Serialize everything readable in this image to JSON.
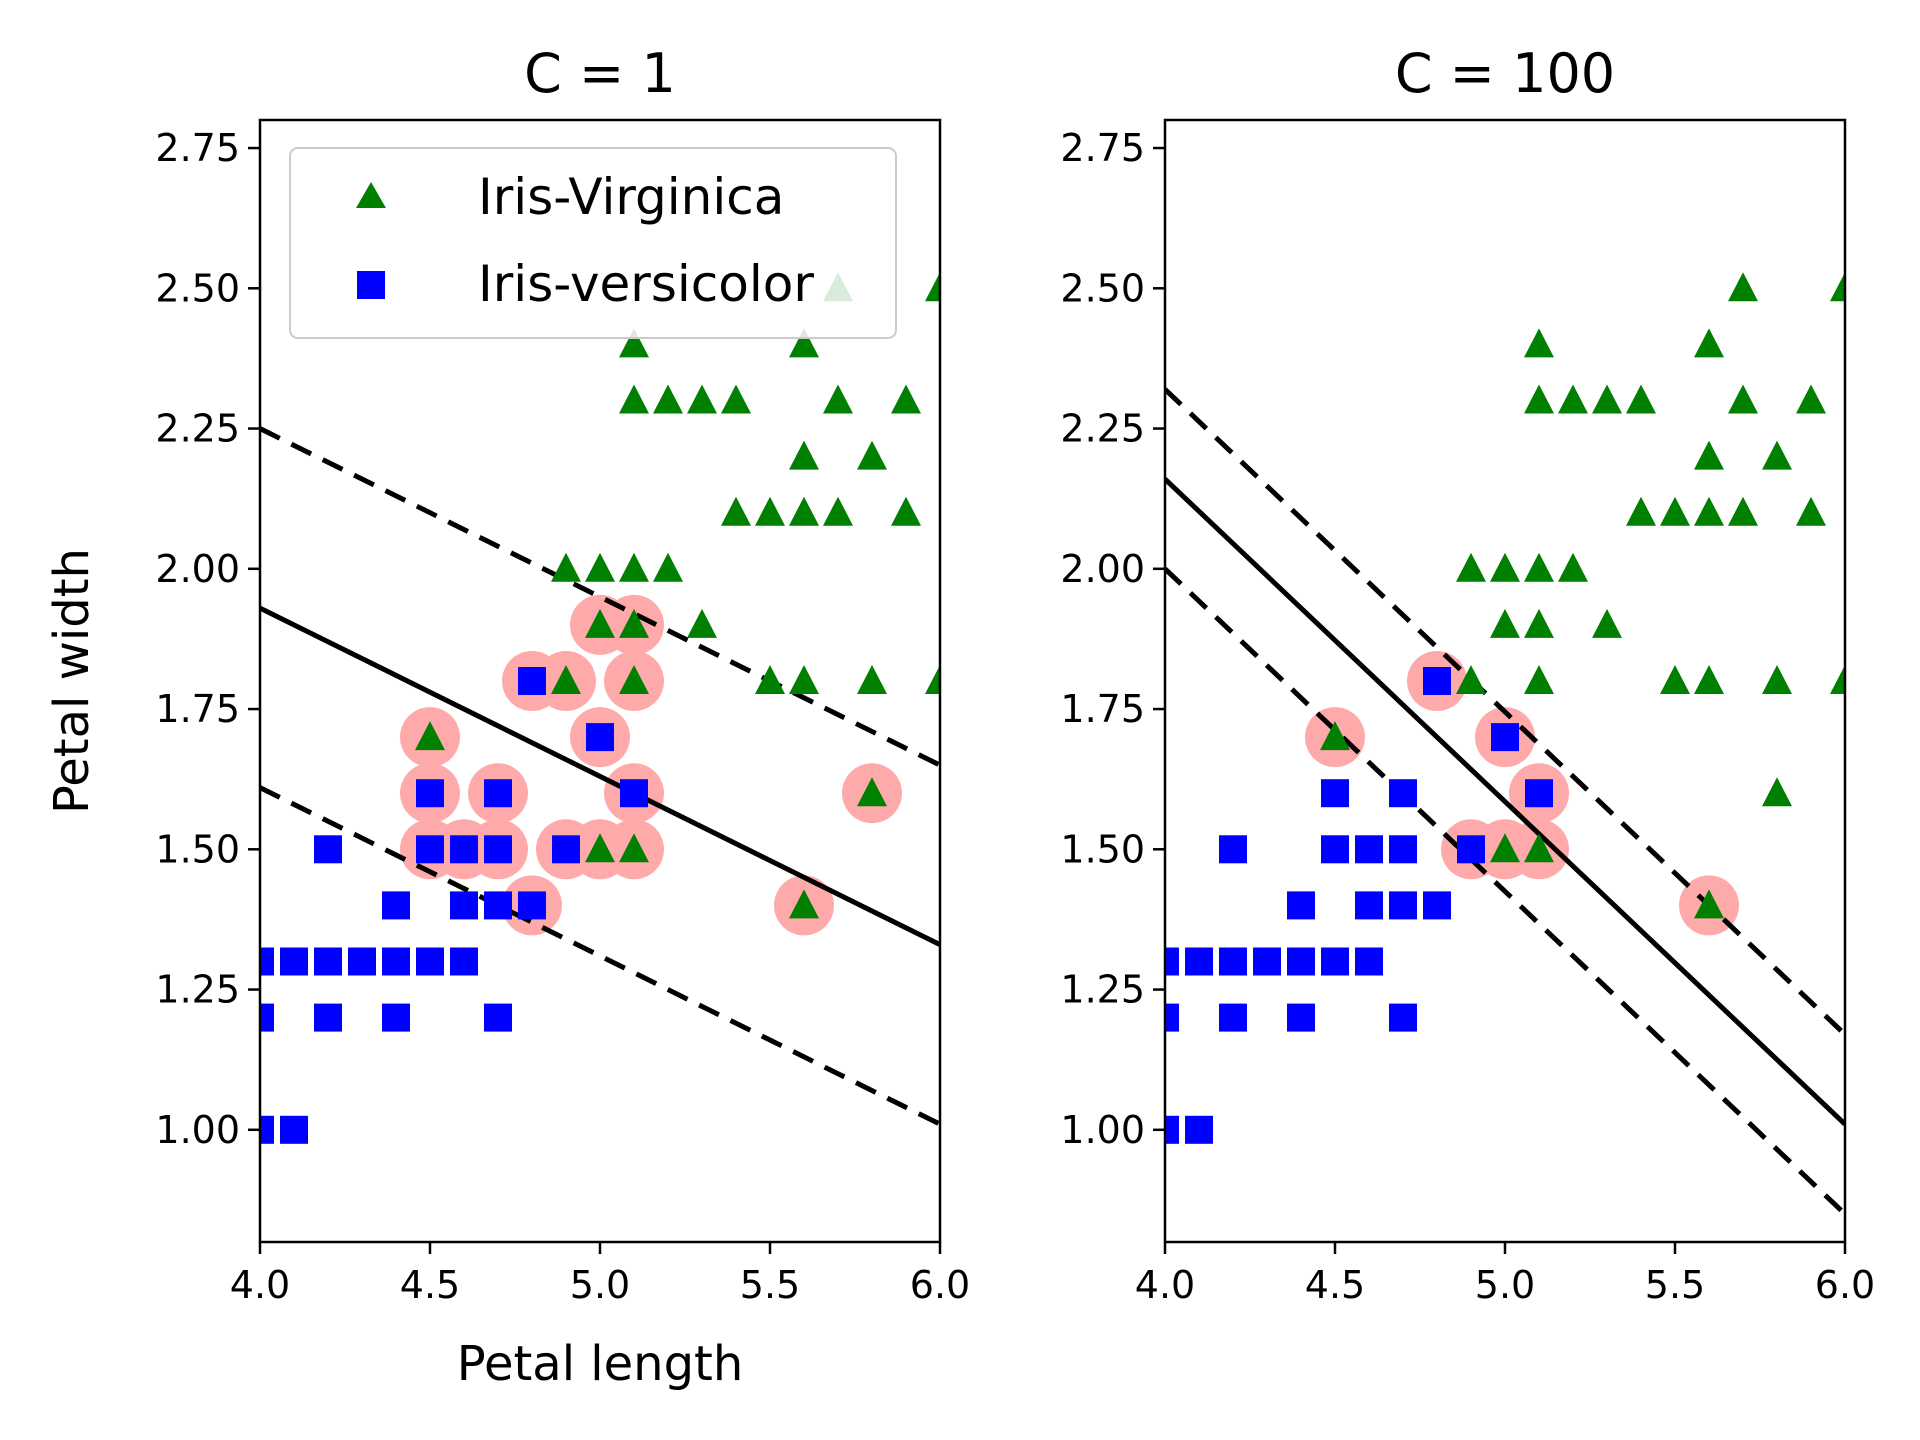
{
  "chart_data": [
    {
      "type": "scatter",
      "title": "C = 1",
      "xlabel": "Petal length",
      "ylabel": "Petal width",
      "xlim": [
        4.0,
        6.0
      ],
      "ylim": [
        0.8,
        2.8
      ],
      "xticks": [
        "4.0",
        "4.5",
        "5.0",
        "5.5",
        "6.0"
      ],
      "yticks": [
        "1.00",
        "1.25",
        "1.50",
        "1.75",
        "2.00",
        "2.25",
        "2.50",
        "2.75"
      ],
      "legend": {
        "position": "top-left",
        "entries": [
          {
            "label": "Iris-Virginica",
            "marker": "triangle",
            "color": "#008000"
          },
          {
            "label": "Iris-versicolor",
            "marker": "square",
            "color": "#0000ff"
          }
        ]
      },
      "series": [
        {
          "name": "Iris-Virginica",
          "marker": "triangle",
          "color": "#008000",
          "points": [
            [
              5.6,
              2.4
            ],
            [
              5.1,
              2.4
            ],
            [
              5.1,
              2.3
            ],
            [
              5.2,
              2.3
            ],
            [
              5.3,
              2.3
            ],
            [
              5.4,
              2.3
            ],
            [
              5.7,
              2.3
            ],
            [
              5.9,
              2.3
            ],
            [
              5.7,
              2.5
            ],
            [
              6.0,
              2.5
            ],
            [
              5.6,
              2.2
            ],
            [
              5.8,
              2.2
            ],
            [
              5.4,
              2.1
            ],
            [
              5.5,
              2.1
            ],
            [
              5.6,
              2.1
            ],
            [
              5.7,
              2.1
            ],
            [
              5.9,
              2.1
            ],
            [
              4.9,
              2.0
            ],
            [
              5.0,
              2.0
            ],
            [
              5.1,
              2.0
            ],
            [
              5.2,
              2.0
            ],
            [
              5.0,
              1.9
            ],
            [
              5.1,
              1.9
            ],
            [
              5.3,
              1.9
            ],
            [
              4.9,
              1.8
            ],
            [
              5.1,
              1.8
            ],
            [
              5.5,
              1.8
            ],
            [
              5.6,
              1.8
            ],
            [
              5.8,
              1.8
            ],
            [
              6.0,
              1.8
            ],
            [
              4.5,
              1.7
            ],
            [
              5.8,
              1.6
            ],
            [
              5.0,
              1.5
            ],
            [
              5.1,
              1.5
            ],
            [
              5.6,
              1.4
            ]
          ]
        },
        {
          "name": "Iris-versicolor",
          "marker": "square",
          "color": "#0000ff",
          "points": [
            [
              4.8,
              1.8
            ],
            [
              5.0,
              1.7
            ],
            [
              4.5,
              1.6
            ],
            [
              4.7,
              1.6
            ],
            [
              5.1,
              1.6
            ],
            [
              4.2,
              1.5
            ],
            [
              4.5,
              1.5
            ],
            [
              4.6,
              1.5
            ],
            [
              4.7,
              1.5
            ],
            [
              4.9,
              1.5
            ],
            [
              4.4,
              1.4
            ],
            [
              4.6,
              1.4
            ],
            [
              4.7,
              1.4
            ],
            [
              4.8,
              1.4
            ],
            [
              4.0,
              1.3
            ],
            [
              4.1,
              1.3
            ],
            [
              4.2,
              1.3
            ],
            [
              4.3,
              1.3
            ],
            [
              4.4,
              1.3
            ],
            [
              4.5,
              1.3
            ],
            [
              4.6,
              1.3
            ],
            [
              4.0,
              1.2
            ],
            [
              4.2,
              1.2
            ],
            [
              4.4,
              1.2
            ],
            [
              4.7,
              1.2
            ],
            [
              4.0,
              1.0
            ],
            [
              4.1,
              1.0
            ]
          ]
        }
      ],
      "support_vectors": [
        [
          4.5,
          1.7
        ],
        [
          4.5,
          1.6
        ],
        [
          4.5,
          1.5
        ],
        [
          4.6,
          1.5
        ],
        [
          4.7,
          1.6
        ],
        [
          4.7,
          1.5
        ],
        [
          4.8,
          1.4
        ],
        [
          4.8,
          1.8
        ],
        [
          4.9,
          1.8
        ],
        [
          4.9,
          1.5
        ],
        [
          5.0,
          1.9
        ],
        [
          5.0,
          1.7
        ],
        [
          5.0,
          1.5
        ],
        [
          5.1,
          1.9
        ],
        [
          5.1,
          1.8
        ],
        [
          5.1,
          1.6
        ],
        [
          5.1,
          1.5
        ],
        [
          5.6,
          1.4
        ],
        [
          5.8,
          1.6
        ]
      ],
      "support_vector_color": "#ffaaaa",
      "lines": [
        {
          "style": "solid",
          "points": [
            [
              4.0,
              1.93
            ],
            [
              6.0,
              1.33
            ]
          ]
        },
        {
          "style": "dashed",
          "points": [
            [
              4.0,
              2.25
            ],
            [
              6.0,
              1.65
            ]
          ]
        },
        {
          "style": "dashed",
          "points": [
            [
              4.0,
              1.61
            ],
            [
              6.0,
              1.01
            ]
          ]
        }
      ]
    },
    {
      "type": "scatter",
      "title": "C = 100",
      "xlabel": "",
      "ylabel": "",
      "xlim": [
        4.0,
        6.0
      ],
      "ylim": [
        0.8,
        2.8
      ],
      "xticks": [
        "4.0",
        "4.5",
        "5.0",
        "5.5",
        "6.0"
      ],
      "yticks": [
        "1.00",
        "1.25",
        "1.50",
        "1.75",
        "2.00",
        "2.25",
        "2.50",
        "2.75"
      ],
      "series": [
        {
          "name": "Iris-Virginica",
          "marker": "triangle",
          "color": "#008000",
          "points": [
            [
              5.6,
              2.4
            ],
            [
              5.1,
              2.4
            ],
            [
              5.1,
              2.3
            ],
            [
              5.2,
              2.3
            ],
            [
              5.3,
              2.3
            ],
            [
              5.4,
              2.3
            ],
            [
              5.7,
              2.3
            ],
            [
              5.9,
              2.3
            ],
            [
              5.7,
              2.5
            ],
            [
              6.0,
              2.5
            ],
            [
              5.6,
              2.2
            ],
            [
              5.8,
              2.2
            ],
            [
              5.4,
              2.1
            ],
            [
              5.5,
              2.1
            ],
            [
              5.6,
              2.1
            ],
            [
              5.7,
              2.1
            ],
            [
              5.9,
              2.1
            ],
            [
              4.9,
              2.0
            ],
            [
              5.0,
              2.0
            ],
            [
              5.1,
              2.0
            ],
            [
              5.2,
              2.0
            ],
            [
              5.0,
              1.9
            ],
            [
              5.1,
              1.9
            ],
            [
              5.3,
              1.9
            ],
            [
              4.9,
              1.8
            ],
            [
              5.1,
              1.8
            ],
            [
              5.5,
              1.8
            ],
            [
              5.6,
              1.8
            ],
            [
              5.8,
              1.8
            ],
            [
              6.0,
              1.8
            ],
            [
              4.5,
              1.7
            ],
            [
              5.8,
              1.6
            ],
            [
              5.0,
              1.5
            ],
            [
              5.1,
              1.5
            ],
            [
              5.6,
              1.4
            ]
          ]
        },
        {
          "name": "Iris-versicolor",
          "marker": "square",
          "color": "#0000ff",
          "points": [
            [
              4.8,
              1.8
            ],
            [
              5.0,
              1.7
            ],
            [
              4.5,
              1.6
            ],
            [
              4.7,
              1.6
            ],
            [
              5.1,
              1.6
            ],
            [
              4.2,
              1.5
            ],
            [
              4.5,
              1.5
            ],
            [
              4.6,
              1.5
            ],
            [
              4.7,
              1.5
            ],
            [
              4.9,
              1.5
            ],
            [
              4.4,
              1.4
            ],
            [
              4.6,
              1.4
            ],
            [
              4.7,
              1.4
            ],
            [
              4.8,
              1.4
            ],
            [
              4.0,
              1.3
            ],
            [
              4.1,
              1.3
            ],
            [
              4.2,
              1.3
            ],
            [
              4.3,
              1.3
            ],
            [
              4.4,
              1.3
            ],
            [
              4.5,
              1.3
            ],
            [
              4.6,
              1.3
            ],
            [
              4.0,
              1.2
            ],
            [
              4.2,
              1.2
            ],
            [
              4.4,
              1.2
            ],
            [
              4.7,
              1.2
            ],
            [
              4.0,
              1.0
            ],
            [
              4.1,
              1.0
            ]
          ]
        }
      ],
      "support_vectors": [
        [
          4.5,
          1.7
        ],
        [
          4.8,
          1.8
        ],
        [
          5.0,
          1.7
        ],
        [
          5.1,
          1.6
        ],
        [
          4.9,
          1.5
        ],
        [
          5.0,
          1.5
        ],
        [
          5.1,
          1.5
        ],
        [
          5.6,
          1.4
        ]
      ],
      "support_vector_color": "#ffaaaa",
      "lines": [
        {
          "style": "solid",
          "points": [
            [
              4.0,
              2.16
            ],
            [
              6.0,
              1.01
            ]
          ]
        },
        {
          "style": "dashed",
          "points": [
            [
              4.0,
              2.32
            ],
            [
              6.0,
              1.17
            ]
          ]
        },
        {
          "style": "dashed",
          "points": [
            [
              4.0,
              2.0
            ],
            [
              6.0,
              0.85
            ]
          ]
        }
      ]
    }
  ]
}
